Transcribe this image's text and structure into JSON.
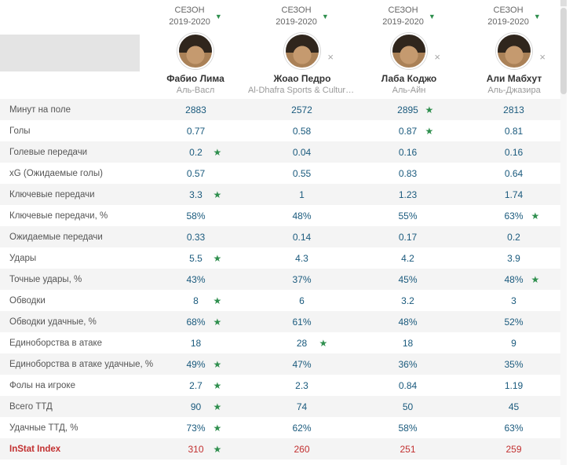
{
  "ui": {
    "season_line1": "СЕЗОН",
    "season_line2": "2019-2020",
    "caret_icon": "▼",
    "close_icon": "×",
    "star_icon": "★"
  },
  "colors": {
    "accent_green": "#2f8f4e",
    "value_blue": "#1a5a7d",
    "highlight_red": "#c23030",
    "alt_row_bg": "#f4f4f4",
    "header_block_gray": "#e4e4e4"
  },
  "players": [
    {
      "name": "Фабио Лима",
      "club": "Аль-Васл",
      "closable": false
    },
    {
      "name": "Жоао Педро",
      "club": "Al-Dhafra Sports & Culture ...",
      "closable": true
    },
    {
      "name": "Лаба Коджо",
      "club": "Аль-Айн",
      "closable": true
    },
    {
      "name": "Али Мабхут",
      "club": "Аль-Джазира",
      "closable": true
    }
  ],
  "metrics": [
    {
      "label": "Минут на поле",
      "values": [
        "2883",
        "2572",
        "2895",
        "2813"
      ],
      "star": 2,
      "highlight": false
    },
    {
      "label": "Голы",
      "values": [
        "0.77",
        "0.58",
        "0.87",
        "0.81"
      ],
      "star": 2,
      "highlight": false
    },
    {
      "label": "Голевые передачи",
      "values": [
        "0.2",
        "0.04",
        "0.16",
        "0.16"
      ],
      "star": 0,
      "highlight": false
    },
    {
      "label": "xG (Ожидаемые голы)",
      "values": [
        "0.57",
        "0.55",
        "0.83",
        "0.64"
      ],
      "star": -1,
      "highlight": false
    },
    {
      "label": "Ключевые передачи",
      "values": [
        "3.3",
        "1",
        "1.23",
        "1.74"
      ],
      "star": 0,
      "highlight": false
    },
    {
      "label": "Ключевые передачи, %",
      "values": [
        "58%",
        "48%",
        "55%",
        "63%"
      ],
      "star": 3,
      "highlight": false
    },
    {
      "label": "Ожидаемые передачи",
      "values": [
        "0.33",
        "0.14",
        "0.17",
        "0.2"
      ],
      "star": -1,
      "highlight": false
    },
    {
      "label": "Удары",
      "values": [
        "5.5",
        "4.3",
        "4.2",
        "3.9"
      ],
      "star": 0,
      "highlight": false
    },
    {
      "label": "Точные удары, %",
      "values": [
        "43%",
        "37%",
        "45%",
        "48%"
      ],
      "star": 3,
      "highlight": false
    },
    {
      "label": "Обводки",
      "values": [
        "8",
        "6",
        "3.2",
        "3"
      ],
      "star": 0,
      "highlight": false
    },
    {
      "label": "Обводки удачные, %",
      "values": [
        "68%",
        "61%",
        "48%",
        "52%"
      ],
      "star": 0,
      "highlight": false
    },
    {
      "label": "Единоборства в атаке",
      "values": [
        "18",
        "28",
        "18",
        "9"
      ],
      "star": 1,
      "highlight": false
    },
    {
      "label": "Единоборства в атаке удачные, %",
      "values": [
        "49%",
        "47%",
        "36%",
        "35%"
      ],
      "star": 0,
      "highlight": false
    },
    {
      "label": "Фолы на игроке",
      "values": [
        "2.7",
        "2.3",
        "0.84",
        "1.19"
      ],
      "star": 0,
      "highlight": false
    },
    {
      "label": "Всего ТТД",
      "values": [
        "90",
        "74",
        "50",
        "45"
      ],
      "star": 0,
      "highlight": false
    },
    {
      "label": "Удачные ТТД, %",
      "values": [
        "73%",
        "62%",
        "58%",
        "63%"
      ],
      "star": 0,
      "highlight": false
    },
    {
      "label": "InStat Index",
      "values": [
        "310",
        "260",
        "251",
        "259"
      ],
      "star": 0,
      "highlight": true
    }
  ]
}
